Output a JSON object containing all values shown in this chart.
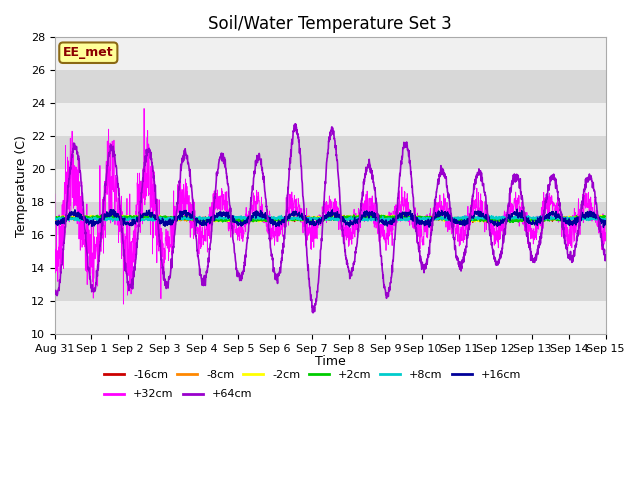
{
  "title": "Soil/Water Temperature Set 3",
  "xlabel": "Time",
  "ylabel": "Temperature (C)",
  "ylim": [
    10,
    28
  ],
  "x_tick_labels": [
    "Aug 31",
    "Sep 1",
    "Sep 2",
    "Sep 3",
    "Sep 4",
    "Sep 5",
    "Sep 6",
    "Sep 7",
    "Sep 8",
    "Sep 9",
    "Sep 10",
    "Sep 11",
    "Sep 12",
    "Sep 13",
    "Sep 14",
    "Sep 15"
  ],
  "annotation_text": "EE_met",
  "annotation_bg": "#ffff99",
  "annotation_border": "#8B6914",
  "background_color": "#ffffff",
  "series": [
    {
      "label": "-16cm",
      "color": "#cc0000",
      "linewidth": 1.0,
      "zorder": 5
    },
    {
      "label": "-8cm",
      "color": "#ff8800",
      "linewidth": 1.0,
      "zorder": 5
    },
    {
      "label": "-2cm",
      "color": "#ffff00",
      "linewidth": 1.0,
      "zorder": 5
    },
    {
      "label": "+2cm",
      "color": "#00cc00",
      "linewidth": 1.0,
      "zorder": 5
    },
    {
      "label": "+8cm",
      "color": "#00cccc",
      "linewidth": 1.0,
      "zorder": 5
    },
    {
      "label": "+16cm",
      "color": "#000099",
      "linewidth": 1.0,
      "zorder": 5
    },
    {
      "label": "+32cm",
      "color": "#ff00ff",
      "linewidth": 0.6,
      "zorder": 4
    },
    {
      "label": "+64cm",
      "color": "#9900cc",
      "linewidth": 1.2,
      "zorder": 6
    }
  ],
  "title_fontsize": 12,
  "tick_fontsize": 8,
  "band_colors": [
    "#f0f0f0",
    "#d8d8d8"
  ],
  "band_step": 2
}
